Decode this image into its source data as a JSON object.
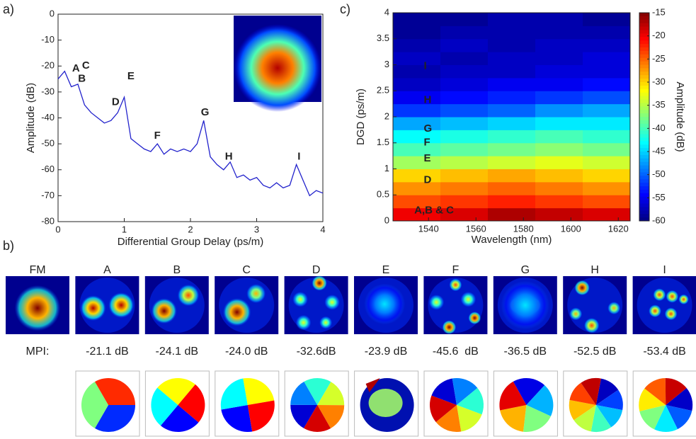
{
  "panels": [
    "a)",
    "b)",
    "c)"
  ],
  "chart_data": [
    {
      "type": "line",
      "xlabel": "Differential Group Delay (ps/m)",
      "ylabel": "Amplitude (dB)",
      "color": "#2222cc",
      "x": [
        0,
        0.1,
        0.2,
        0.3,
        0.4,
        0.5,
        0.6,
        0.7,
        0.8,
        0.9,
        1.0,
        1.1,
        1.2,
        1.3,
        1.4,
        1.5,
        1.6,
        1.7,
        1.8,
        1.9,
        2.0,
        2.1,
        2.2,
        2.3,
        2.4,
        2.5,
        2.6,
        2.7,
        2.8,
        2.9,
        3.0,
        3.1,
        3.2,
        3.3,
        3.4,
        3.5,
        3.6,
        3.7,
        3.8,
        3.9,
        4.0
      ],
      "values": [
        -25,
        -22,
        -28,
        -27,
        -35,
        -38,
        -40,
        -42,
        -41,
        -38,
        -32,
        -48,
        -50,
        -52,
        -53,
        -50,
        -54,
        -52,
        -53,
        -52,
        -53,
        -50,
        -41,
        -55,
        -58,
        -60,
        -57,
        -63,
        -62,
        -64,
        -63,
        -66,
        -67,
        -65,
        -67,
        -66,
        -58,
        -64,
        -70,
        -68,
        -69
      ],
      "xlim": [
        0,
        4
      ],
      "ylim": [
        -80,
        0
      ],
      "xticks": [
        0,
        1,
        2,
        3,
        4
      ],
      "yticks": [
        0,
        -10,
        -20,
        -30,
        -40,
        -50,
        -60,
        -70,
        -80
      ],
      "annotations": [
        {
          "text": "A",
          "x": 0.27,
          "y": -21,
          "color": "#1a8a1a"
        },
        {
          "text": "C",
          "x": 0.42,
          "y": -20,
          "color": "#20b0b0"
        },
        {
          "text": "B",
          "x": 0.36,
          "y": -25,
          "color": "#e02020"
        },
        {
          "text": "E",
          "x": 1.1,
          "y": -24,
          "color": "#c8c020"
        },
        {
          "text": "D",
          "x": 0.87,
          "y": -34,
          "color": "#c020c0"
        },
        {
          "text": "F",
          "x": 1.5,
          "y": -47,
          "color": "#333333"
        },
        {
          "text": "G",
          "x": 2.22,
          "y": -38,
          "color": "#1a8a1a"
        },
        {
          "text": "H",
          "x": 2.58,
          "y": -55,
          "color": "#e02020"
        },
        {
          "text": "I",
          "x": 3.64,
          "y": -55,
          "color": "#20b0b0"
        }
      ]
    },
    {
      "type": "heatmap",
      "xlabel": "Wavelength (nm)",
      "ylabel": "DGD (ps/m)",
      "colorbar_label": "Amplitude (dB)",
      "xbins": [
        1525,
        1545,
        1565,
        1585,
        1605,
        1625
      ],
      "ybins": [
        0,
        0.25,
        0.5,
        0.75,
        1,
        1.25,
        1.5,
        1.75,
        2,
        2.25,
        2.5,
        2.75,
        3,
        3.25,
        3.5,
        3.75,
        4
      ],
      "z": [
        [
          -20,
          -19,
          -17,
          -18,
          -19
        ],
        [
          -24,
          -23,
          -22,
          -23,
          -24
        ],
        [
          -27,
          -26,
          -25,
          -26,
          -27
        ],
        [
          -30,
          -29,
          -28,
          -29,
          -30
        ],
        [
          -36,
          -35,
          -34,
          -33,
          -34
        ],
        [
          -40,
          -39,
          -38,
          -37,
          -38
        ],
        [
          -43,
          -42,
          -41,
          -40,
          -41
        ],
        [
          -47,
          -46,
          -45,
          -44,
          -44
        ],
        [
          -52,
          -51,
          -50,
          -48,
          -47
        ],
        [
          -55,
          -54,
          -53,
          -52,
          -51
        ],
        [
          -57,
          -56,
          -55,
          -55,
          -54
        ],
        [
          -58,
          -57,
          -57,
          -56,
          -56
        ],
        [
          -57,
          -58,
          -57,
          -57,
          -56
        ],
        [
          -58,
          -57,
          -58,
          -57,
          -57
        ],
        [
          -59,
          -58,
          -58,
          -58,
          -58
        ],
        [
          -59,
          -59,
          -58,
          -58,
          -59
        ]
      ],
      "xlim": [
        1525,
        1625
      ],
      "ylim": [
        0,
        4
      ],
      "xticks": [
        1540,
        1560,
        1580,
        1600,
        1620
      ],
      "yticks": [
        0,
        0.5,
        1,
        1.5,
        2,
        2.5,
        3,
        3.5,
        4
      ],
      "clim": [
        -60,
        -15
      ],
      "cticks": [
        -15,
        -20,
        -25,
        -30,
        -35,
        -40,
        -45,
        -50,
        -55,
        -60
      ],
      "annotations": [
        {
          "text": "I",
          "x": 1538,
          "y": 2.97
        },
        {
          "text": "H",
          "x": 1538,
          "y": 2.32
        },
        {
          "text": "G",
          "x": 1538,
          "y": 1.77
        },
        {
          "text": "F",
          "x": 1538,
          "y": 1.5
        },
        {
          "text": "E",
          "x": 1538,
          "y": 1.2
        },
        {
          "text": "D",
          "x": 1538,
          "y": 0.78
        },
        {
          "text": "A,B & C",
          "x": 1534,
          "y": 0.2
        }
      ]
    }
  ],
  "modes": {
    "mpi_label": "MPI:",
    "items": [
      {
        "name": "FM"
      },
      {
        "name": "A",
        "mpi": "-21.1 dB"
      },
      {
        "name": "B",
        "mpi": "-24.1 dB"
      },
      {
        "name": "C",
        "mpi": "-24.0 dB"
      },
      {
        "name": "D",
        "mpi": "-32.6dB"
      },
      {
        "name": "E",
        "mpi": "-23.9 dB"
      },
      {
        "name": "F",
        "mpi": "-45.6  dB"
      },
      {
        "name": "G",
        "mpi": "-36.5 dB"
      },
      {
        "name": "H",
        "mpi": "-52.5 dB"
      },
      {
        "name": "I",
        "mpi": "-53.4 dB"
      }
    ]
  }
}
